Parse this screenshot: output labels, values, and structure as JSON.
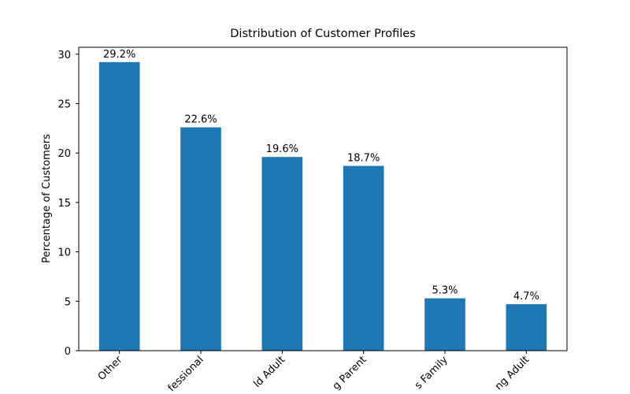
{
  "chart_data": {
    "type": "bar",
    "title": "Distribution of Customer Profiles",
    "ylabel": "Percentage of Customers",
    "categories": [
      "Other",
      "fessional",
      "ld Adult",
      "g Parent",
      "s Family",
      "ng Adult"
    ],
    "values": [
      29.2,
      22.6,
      19.6,
      18.7,
      5.3,
      4.7
    ],
    "value_labels": [
      "29.2%",
      "22.6%",
      "19.6%",
      "18.7%",
      "5.3%",
      "4.7%"
    ],
    "color": "#1f77b4",
    "ylim": [
      0,
      30.7
    ],
    "yticks": [
      0,
      5,
      10,
      15,
      20,
      25,
      30
    ],
    "grid": false
  }
}
